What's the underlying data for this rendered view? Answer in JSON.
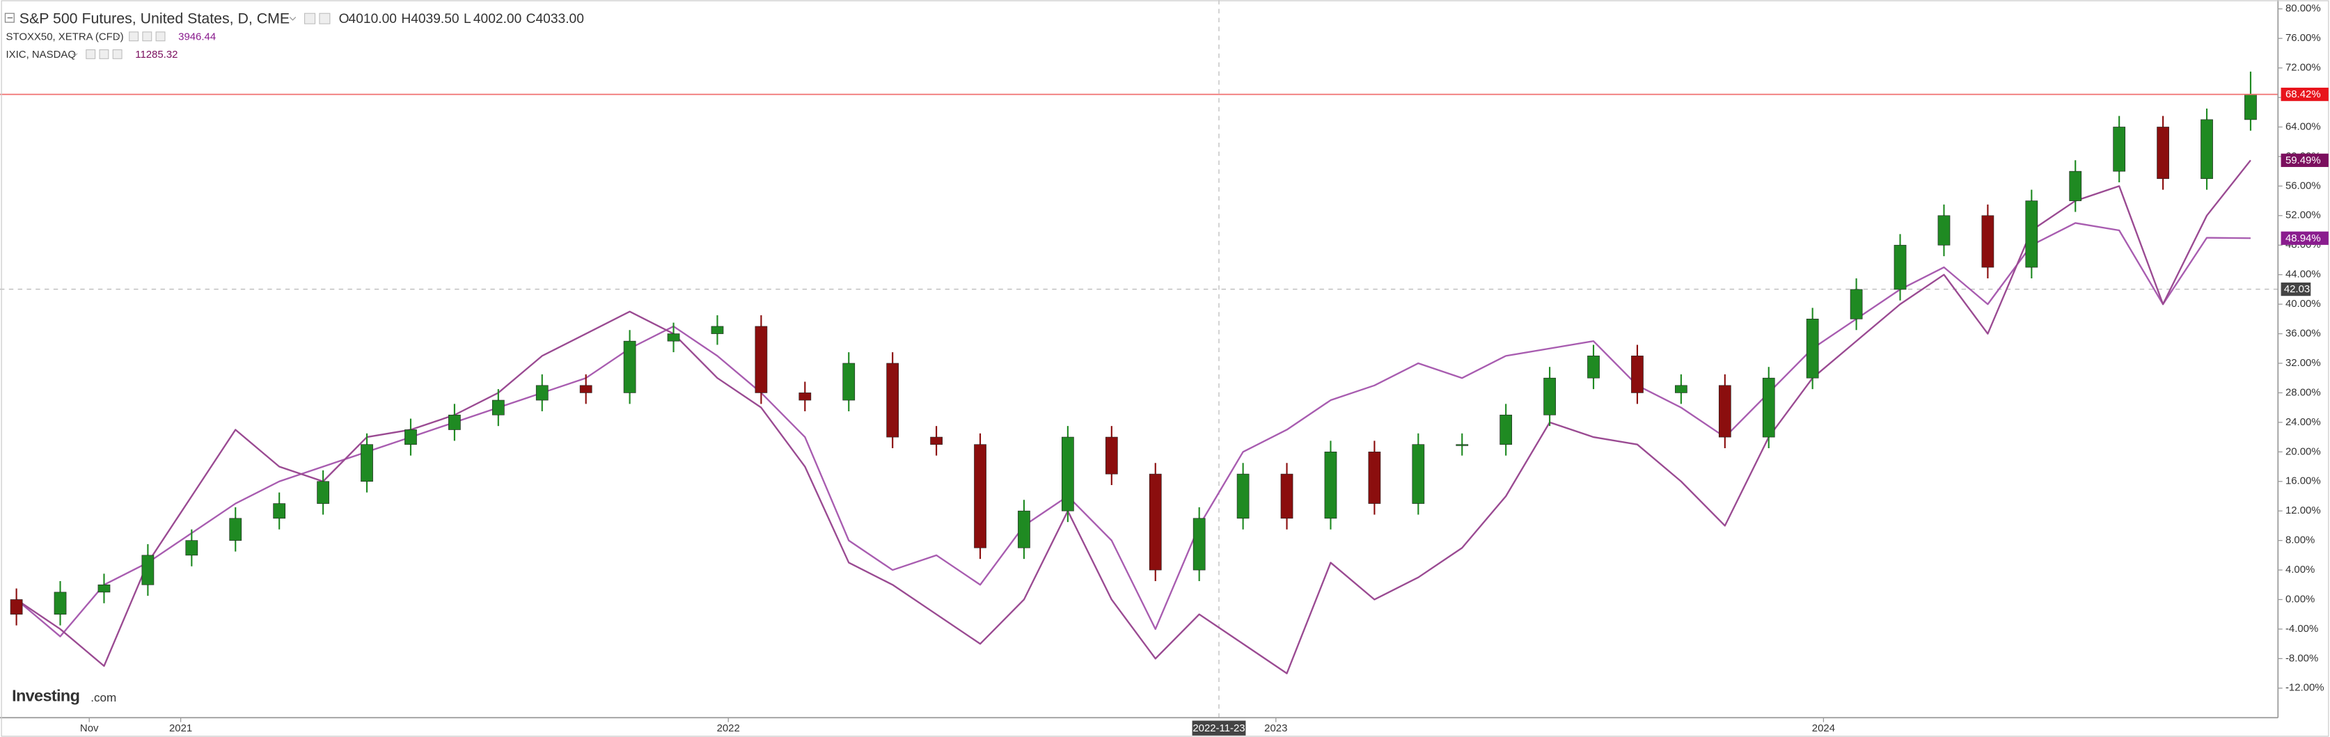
{
  "chart_data": {
    "type": "candlestick",
    "xlim": [
      2020.67,
      2024.83
    ],
    "ylim": [
      -16,
      81.2
    ],
    "grid": false,
    "xticks": [
      {
        "value": 2020.833,
        "label": "Nov"
      },
      {
        "value": 2021,
        "label": "2021"
      },
      {
        "value": 2022,
        "label": "2022"
      },
      {
        "value": 2023,
        "label": "2023"
      },
      {
        "value": 2024,
        "label": "2024"
      }
    ],
    "yticks": [
      {
        "value": -12,
        "label": "-12.00%"
      },
      {
        "value": -8,
        "label": "-8.00%"
      },
      {
        "value": -4,
        "label": "-4.00%"
      },
      {
        "value": 0,
        "label": "0.00%"
      },
      {
        "value": 4,
        "label": "4.00%"
      },
      {
        "value": 8,
        "label": "8.00%"
      },
      {
        "value": 12,
        "label": "12.00%"
      },
      {
        "value": 16,
        "label": "16.00%"
      },
      {
        "value": 20,
        "label": "20.00%"
      },
      {
        "value": 24,
        "label": "24.00%"
      },
      {
        "value": 28,
        "label": "28.00%"
      },
      {
        "value": 32,
        "label": "32.00%"
      },
      {
        "value": 36,
        "label": "36.00%"
      },
      {
        "value": 40,
        "label": "40.00%"
      },
      {
        "value": 44,
        "label": "44.00%"
      },
      {
        "value": 48,
        "label": "48.00%"
      },
      {
        "value": 52,
        "label": "52.00%"
      },
      {
        "value": 56,
        "label": "56.00%"
      },
      {
        "value": 60,
        "label": "60.00%"
      },
      {
        "value": 64,
        "label": "64.00%"
      },
      {
        "value": 68,
        "label": "68.00%"
      },
      {
        "value": 72,
        "label": "72.00%"
      },
      {
        "value": 76,
        "label": "76.00%"
      },
      {
        "value": 80,
        "label": "80.00%"
      }
    ],
    "crosshair": {
      "x": {
        "value": 2022.896,
        "label": "2022-11-23"
      },
      "y": 42.03
    },
    "brand": [
      "Investing",
      ".com"
    ],
    "x": [
      2020.7,
      2020.78,
      2020.86,
      2020.94,
      2021.02,
      2021.1,
      2021.18,
      2021.26,
      2021.34,
      2021.42,
      2021.5,
      2021.58,
      2021.66,
      2021.74,
      2021.82,
      2021.9,
      2021.98,
      2022.06,
      2022.14,
      2022.22,
      2022.3,
      2022.38,
      2022.46,
      2022.54,
      2022.62,
      2022.7,
      2022.78,
      2022.86,
      2022.94,
      2023.02,
      2023.1,
      2023.18,
      2023.26,
      2023.34,
      2023.42,
      2023.5,
      2023.58,
      2023.66,
      2023.74,
      2023.82,
      2023.9,
      2023.98,
      2024.06,
      2024.14,
      2024.22,
      2024.3,
      2024.38,
      2024.46,
      2024.54,
      2024.62,
      2024.7,
      2024.78
    ],
    "series": [
      {
        "name": "S&P 500 Futures, United States, D, CME",
        "type": "candlestick",
        "up_color": "#1f8a22",
        "down_color": "#8b0e0e",
        "label_color": "#e8141c",
        "quote": [
          [
            "O",
            "4010.00"
          ],
          [
            "H",
            "4039.50"
          ],
          [
            "L",
            "4002.00"
          ],
          [
            "C",
            "4033.00"
          ]
        ],
        "last_label": {
          "value": 68.42,
          "label": "68.42%"
        },
        "ohlc": [
          [
            0,
            1.5,
            -3.5,
            -2
          ],
          [
            -2,
            2.5,
            -3.5,
            1
          ],
          [
            1,
            3.5,
            -0.5,
            2
          ],
          [
            2,
            7.5,
            0.5,
            6
          ],
          [
            6,
            9.5,
            4.5,
            8
          ],
          [
            8,
            12.5,
            6.5,
            11
          ],
          [
            11,
            14.5,
            9.5,
            13
          ],
          [
            13,
            17.5,
            11.5,
            16
          ],
          [
            16,
            22.5,
            14.5,
            21
          ],
          [
            21,
            24.5,
            19.5,
            23
          ],
          [
            23,
            26.5,
            21.5,
            25
          ],
          [
            25,
            28.5,
            23.5,
            27
          ],
          [
            27,
            30.5,
            25.5,
            29
          ],
          [
            29,
            30.5,
            26.5,
            28
          ],
          [
            28,
            36.5,
            26.5,
            35
          ],
          [
            35,
            37.5,
            33.5,
            36
          ],
          [
            36,
            38.5,
            34.5,
            37
          ],
          [
            37,
            38.5,
            26.5,
            28
          ],
          [
            28,
            29.5,
            25.5,
            27
          ],
          [
            27,
            33.5,
            25.5,
            32
          ],
          [
            32,
            33.5,
            20.5,
            22
          ],
          [
            22,
            23.5,
            19.5,
            21
          ],
          [
            21,
            22.5,
            5.5,
            7
          ],
          [
            7,
            13.5,
            5.5,
            12
          ],
          [
            12,
            23.5,
            10.5,
            22
          ],
          [
            22,
            23.5,
            15.5,
            17
          ],
          [
            17,
            18.5,
            2.5,
            4
          ],
          [
            4,
            12.5,
            2.5,
            11
          ],
          [
            11,
            18.5,
            9.5,
            17
          ],
          [
            17,
            18.5,
            9.5,
            11
          ],
          [
            11,
            21.5,
            9.5,
            20
          ],
          [
            20,
            21.5,
            11.5,
            13
          ],
          [
            13,
            22.5,
            11.5,
            21
          ],
          [
            21,
            22.5,
            19.5,
            21
          ],
          [
            21,
            26.5,
            19.5,
            25
          ],
          [
            25,
            31.5,
            23.5,
            30
          ],
          [
            30,
            34.5,
            28.5,
            33
          ],
          [
            33,
            34.5,
            26.5,
            28
          ],
          [
            28,
            30.5,
            26.5,
            29
          ],
          [
            29,
            30.5,
            20.5,
            22
          ],
          [
            22,
            31.5,
            20.5,
            30
          ],
          [
            30,
            39.5,
            28.5,
            38
          ],
          [
            38,
            43.5,
            36.5,
            42
          ],
          [
            42,
            49.5,
            40.5,
            48
          ],
          [
            48,
            53.5,
            46.5,
            52
          ],
          [
            52,
            53.5,
            43.5,
            45
          ],
          [
            45,
            55.5,
            43.5,
            54
          ],
          [
            54,
            59.5,
            52.5,
            58
          ],
          [
            58,
            65.5,
            56.5,
            64
          ],
          [
            64,
            65.5,
            55.5,
            57
          ],
          [
            57,
            66.5,
            55.5,
            65
          ],
          [
            65,
            71.5,
            63.5,
            68.42
          ]
        ]
      },
      {
        "name": "STOXX50, XETRA (CFD)",
        "type": "line",
        "color": "#a85cb0",
        "label_color": "#8a1c8e",
        "quote": "3946.44",
        "last_label": {
          "value": 48.94,
          "label": "48.94%"
        },
        "values": [
          0,
          -5,
          2,
          5,
          9,
          13,
          16,
          18,
          20,
          22,
          24,
          26,
          28,
          30,
          34,
          37,
          33,
          28,
          22,
          8,
          4,
          6,
          2,
          10,
          14,
          8,
          -4,
          10,
          20,
          23,
          27,
          29,
          32,
          30,
          33,
          34,
          35,
          29,
          26,
          22,
          28,
          34,
          38,
          42,
          45,
          40,
          48,
          51,
          50,
          40,
          49,
          48.94
        ]
      },
      {
        "name": "IXIC, NASDAQ",
        "type": "line",
        "color": "#9a4a92",
        "label_color": "#7b0f5e",
        "quote": "11285.32",
        "last_label": {
          "value": 59.49,
          "label": "59.49%"
        },
        "values": [
          0,
          -4,
          -9,
          5,
          14,
          23,
          18,
          16,
          22,
          23,
          25,
          28,
          33,
          36,
          39,
          36,
          30,
          26,
          18,
          5,
          2,
          -2,
          -6,
          0,
          12,
          0,
          -8,
          -2,
          -6,
          -10,
          5,
          0,
          3,
          7,
          14,
          24,
          22,
          21,
          16,
          10,
          22,
          30,
          35,
          40,
          44,
          36,
          50,
          54,
          56,
          40,
          52,
          59.49
        ]
      }
    ]
  }
}
